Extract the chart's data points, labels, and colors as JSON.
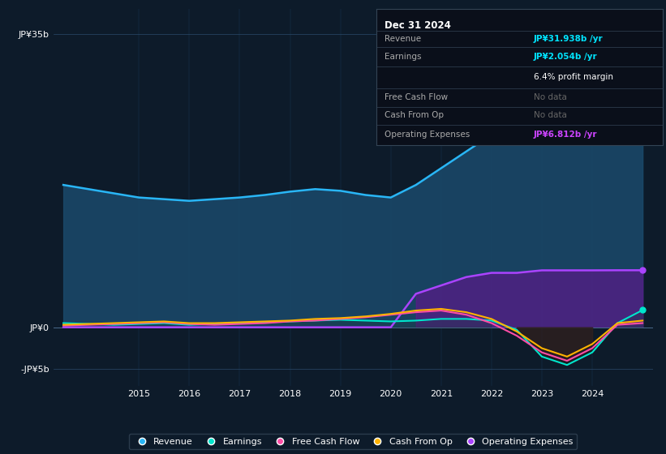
{
  "background_color": "#0d1b2a",
  "plot_bg_color": "#0d1b2a",
  "info_box_title": "Dec 31 2024",
  "years": [
    2013.5,
    2014,
    2014.5,
    2015,
    2015.5,
    2016,
    2016.5,
    2017,
    2017.5,
    2018,
    2018.5,
    2019,
    2019.5,
    2020,
    2020.5,
    2021,
    2021.5,
    2022,
    2022.5,
    2023,
    2023.5,
    2024,
    2024.5,
    2025
  ],
  "revenue": [
    17,
    16.5,
    16,
    15.5,
    15.3,
    15.1,
    15.3,
    15.5,
    15.8,
    16.2,
    16.5,
    16.3,
    15.8,
    15.5,
    17,
    19,
    21,
    23,
    25.5,
    28,
    29.5,
    30.5,
    31.5,
    31.938
  ],
  "earnings": [
    0.5,
    0.4,
    0.3,
    0.4,
    0.5,
    0.3,
    0.4,
    0.5,
    0.6,
    0.7,
    0.8,
    0.9,
    0.8,
    0.7,
    0.8,
    1.0,
    1.0,
    0.8,
    -0.3,
    -3.5,
    -4.5,
    -3.0,
    0.5,
    2.054
  ],
  "free_cash_flow": [
    0.2,
    0.3,
    0.4,
    0.5,
    0.6,
    0.4,
    0.3,
    0.4,
    0.5,
    0.7,
    0.8,
    1.0,
    1.2,
    1.5,
    1.8,
    2.0,
    1.5,
    0.5,
    -1.0,
    -3.0,
    -4.0,
    -2.5,
    0.3,
    0.5
  ],
  "cash_from_op": [
    0.3,
    0.4,
    0.5,
    0.6,
    0.7,
    0.5,
    0.5,
    0.6,
    0.7,
    0.8,
    1.0,
    1.1,
    1.3,
    1.6,
    2.0,
    2.2,
    1.8,
    1.0,
    -0.5,
    -2.5,
    -3.5,
    -2.0,
    0.5,
    0.8
  ],
  "operating_expenses": [
    0,
    0,
    0,
    0,
    0,
    0,
    0,
    0,
    0,
    0,
    0,
    0,
    0,
    0,
    4.0,
    5.0,
    6.0,
    6.5,
    6.5,
    6.8,
    6.8,
    6.8,
    6.812,
    6.812
  ],
  "revenue_color": "#29b6f6",
  "revenue_fill_color": "#1a4a6b",
  "earnings_color": "#00e5cc",
  "free_cash_flow_color": "#ff4da6",
  "cash_from_op_color": "#ffb300",
  "operating_expenses_color": "#aa44ff",
  "operating_expenses_fill_color": "#5a1a8a",
  "ytick_labels": [
    "JP¥35b",
    "JP¥0",
    "-JP¥5b"
  ],
  "ytick_values": [
    35,
    0,
    -5
  ],
  "ylim": [
    -7,
    38
  ],
  "xlim": [
    2013.3,
    2025.2
  ],
  "xtick_labels": [
    "2015",
    "2016",
    "2017",
    "2018",
    "2019",
    "2020",
    "2021",
    "2022",
    "2023",
    "2024"
  ],
  "xtick_values": [
    2015,
    2016,
    2017,
    2018,
    2019,
    2020,
    2021,
    2022,
    2023,
    2024
  ],
  "legend_items": [
    {
      "label": "Revenue",
      "color": "#29b6f6"
    },
    {
      "label": "Earnings",
      "color": "#00e5cc"
    },
    {
      "label": "Free Cash Flow",
      "color": "#ff4da6"
    },
    {
      "label": "Cash From Op",
      "color": "#ffb300"
    },
    {
      "label": "Operating Expenses",
      "color": "#aa44ff"
    }
  ],
  "info_rows": [
    {
      "label": "Revenue",
      "value": "JP¥31.938b /yr",
      "value_color": "#00e5ff"
    },
    {
      "label": "Earnings",
      "value": "JP¥2.054b /yr",
      "value_color": "#00e5ff"
    },
    {
      "label": "",
      "value": "6.4% profit margin",
      "value_color": "#ffffff"
    },
    {
      "label": "Free Cash Flow",
      "value": "No data",
      "value_color": "#666666"
    },
    {
      "label": "Cash From Op",
      "value": "No data",
      "value_color": "#666666"
    },
    {
      "label": "Operating Expenses",
      "value": "JP¥6.812b /yr",
      "value_color": "#cc44ff"
    }
  ],
  "separator_ys_data": [
    0.84,
    0.72,
    0.58,
    0.42,
    0.28,
    0.15
  ],
  "row_ys_data": [
    0.78,
    0.65,
    0.5,
    0.35,
    0.22,
    0.08
  ]
}
